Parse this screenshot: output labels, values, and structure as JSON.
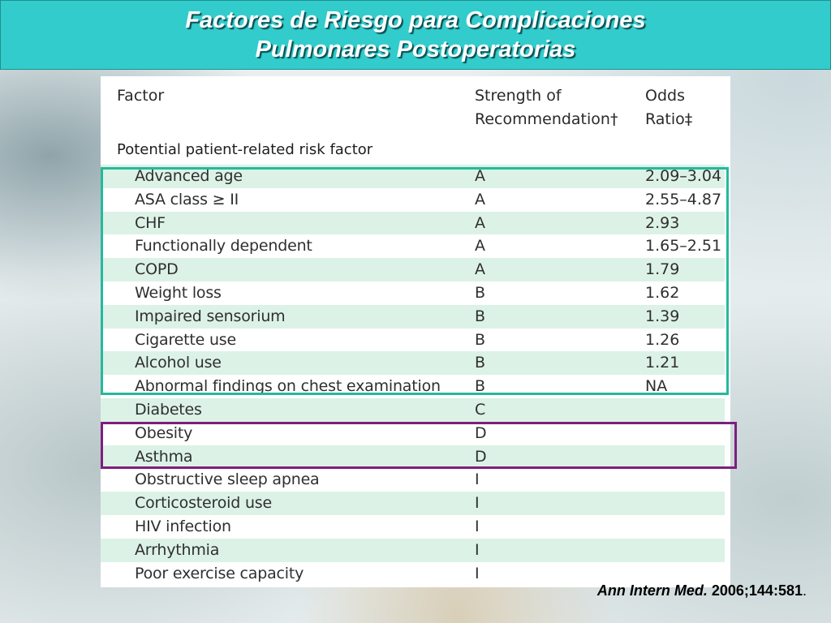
{
  "slide": {
    "title_line1": "Factores de Riesgo para Complicaciones",
    "title_line2": "Pulmonares Postoperatorias"
  },
  "table": {
    "headers": {
      "factor": "Factor",
      "strength_line1": "Strength of",
      "strength_line2": "Recommendation†",
      "odds_line1": "Odds",
      "odds_line2": "Ratio‡"
    },
    "section_title": "Potential patient-related risk factor",
    "rows": [
      {
        "factor": "Advanced age",
        "grade": "A",
        "odds": "2.09–3.04"
      },
      {
        "factor": "ASA class ≥ II",
        "grade": "A",
        "odds": "2.55–4.87"
      },
      {
        "factor": "CHF",
        "grade": "A",
        "odds": "2.93"
      },
      {
        "factor": "Functionally dependent",
        "grade": "A",
        "odds": "1.65–2.51"
      },
      {
        "factor": "COPD",
        "grade": "A",
        "odds": "1.79"
      },
      {
        "factor": "Weight loss",
        "grade": "B",
        "odds": "1.62"
      },
      {
        "factor": "Impaired sensorium",
        "grade": "B",
        "odds": "1.39"
      },
      {
        "factor": "Cigarette use",
        "grade": "B",
        "odds": "1.26"
      },
      {
        "factor": "Alcohol use",
        "grade": "B",
        "odds": "1.21"
      },
      {
        "factor": "Abnormal findings on chest examination",
        "grade": "B",
        "odds": "NA"
      },
      {
        "factor": "Diabetes",
        "grade": "C",
        "odds": ""
      },
      {
        "factor": "Obesity",
        "grade": "D",
        "odds": ""
      },
      {
        "factor": "Asthma",
        "grade": "D",
        "odds": ""
      },
      {
        "factor": "Obstructive sleep apnea",
        "grade": "I",
        "odds": ""
      },
      {
        "factor": "Corticosteroid use",
        "grade": "I",
        "odds": ""
      },
      {
        "factor": "HIV infection",
        "grade": "I",
        "odds": ""
      },
      {
        "factor": "Arrhythmia",
        "grade": "I",
        "odds": ""
      },
      {
        "factor": "Poor exercise capacity",
        "grade": "I",
        "odds": ""
      }
    ]
  },
  "citation": {
    "journal": "Ann Intern Med.",
    "reference": "2006;144:581",
    "period": "."
  },
  "colors": {
    "title_bar": "#33cccc",
    "row_shade": "#dcf2e6",
    "highlight_green": "#25b99b",
    "highlight_purple": "#7d1f7d"
  }
}
